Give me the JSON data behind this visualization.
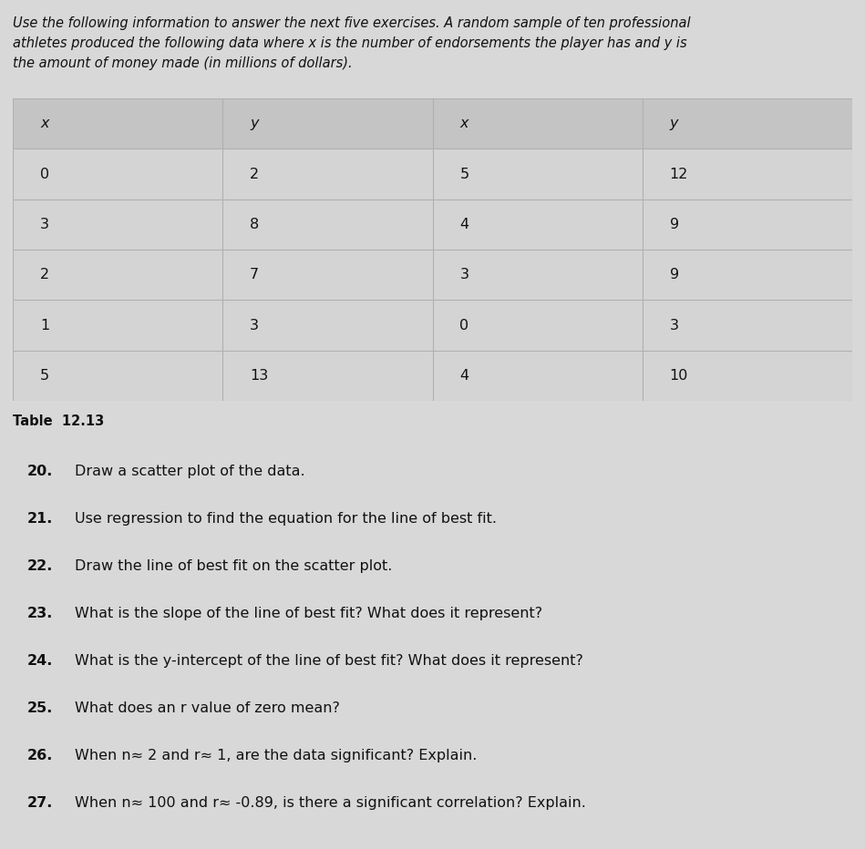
{
  "intro_text_line1": "Use the following information to answer the next five exercises. A random sample of ten professional",
  "intro_text_line2": "athletes produced the following data where x is the number of endorsements the player has and y is",
  "intro_text_line3": "the amount of money made (in millions of dollars).",
  "table_label": "Table  12.13",
  "table_headers": [
    "x",
    "y",
    "x",
    "y"
  ],
  "table_data": [
    [
      0,
      2,
      5,
      12
    ],
    [
      3,
      8,
      4,
      9
    ],
    [
      2,
      7,
      3,
      9
    ],
    [
      1,
      3,
      0,
      3
    ],
    [
      5,
      13,
      4,
      10
    ]
  ],
  "questions": [
    {
      "num": "20.",
      "text": "Draw a scatter plot of the data."
    },
    {
      "num": "21.",
      "text": "Use regression to find the equation for the line of best fit."
    },
    {
      "num": "22.",
      "text": "Draw the line of best fit on the scatter plot."
    },
    {
      "num": "23.",
      "text": "What is the slope of the line of best fit? What does it represent?"
    },
    {
      "num": "24.",
      "text": "What is the y-intercept of the line of best fit? What does it represent?"
    },
    {
      "num": "25.",
      "text": "What does an r value of zero mean?"
    },
    {
      "num": "26.",
      "text": "When n≈ 2 and r≈ 1, are the data significant? Explain."
    },
    {
      "num": "27.",
      "text": "When n≈ 100 and r≈ -0.89, is there a significant correlation? Explain."
    }
  ],
  "bg_color": "#d8d8d8",
  "table_bg_light": "#d4d4d4",
  "table_bg_dark": "#c8c8c8",
  "header_bg_color": "#c4c4c4",
  "border_color": "#b0b0b0",
  "text_color": "#111111",
  "font_size_intro": 10.5,
  "font_size_table": 11.5,
  "font_size_questions": 11.5,
  "font_size_table_label": 10.5,
  "fig_width": 9.49,
  "fig_height": 9.32,
  "dpi": 100
}
